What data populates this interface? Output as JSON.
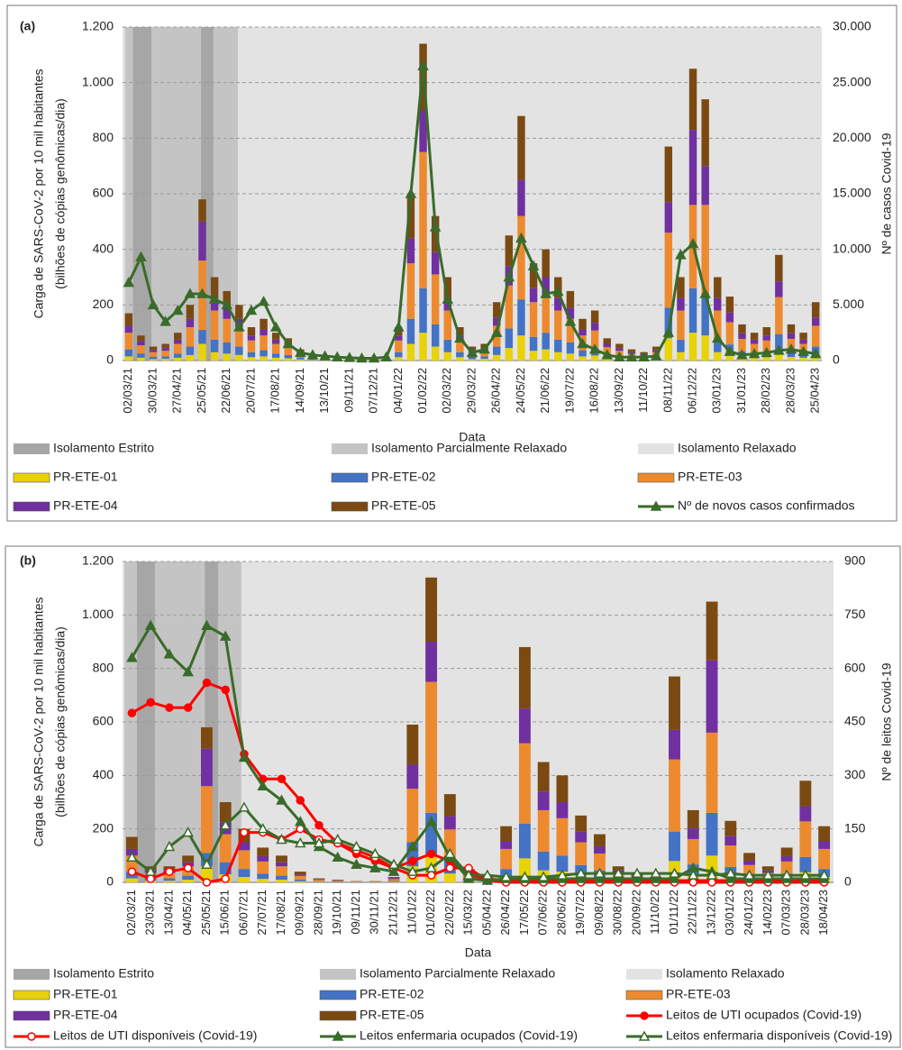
{
  "chart_data": [
    {
      "type": "bar_line",
      "panel_label": "(a)",
      "ylabel": [
        "Carga de SARS-CoV-2 por 10 mil habitantes",
        "(bilhões de cópias genômicas/dia)"
      ],
      "y2label": "Nº de casos Covid-19",
      "xlabel": "Data",
      "categories": [
        "02/03/21",
        null,
        "30/03/21",
        null,
        "27/04/21",
        null,
        "25/05/21",
        null,
        "22/06/21",
        null,
        "20/07/21",
        null,
        "17/08/21",
        null,
        "14/09/21",
        null,
        "13/10/21",
        null,
        "09/11/21",
        null,
        "07/12/21",
        null,
        "04/01/22",
        null,
        "01/02/22",
        null,
        "02/03/22",
        null,
        "29/03/22",
        null,
        "26/04/22",
        null,
        "24/05/22",
        null,
        "21/06/22",
        null,
        "19/07/22",
        null,
        "16/08/22",
        null,
        "13/09/22",
        null,
        "11/10/22",
        null,
        "08/11/22",
        null,
        "06/12/22",
        null,
        "03/01/23",
        null,
        "31/01/23",
        null,
        "28/02/23",
        null,
        "28/03/23",
        null,
        "25/04/23"
      ],
      "ylim": [
        0,
        1200
      ],
      "yticks": [
        0,
        200,
        400,
        600,
        800,
        {
          "value": 1000,
          "label": "1.000"
        },
        {
          "value": 1200,
          "label": "1.200"
        }
      ],
      "y2lim": [
        0,
        30000
      ],
      "y2ticks": [
        0,
        {
          "value": 5000,
          "label": "5.000"
        },
        {
          "value": 10000,
          "label": "10.000"
        },
        {
          "value": 15000,
          "label": "15.000"
        },
        {
          "value": 20000,
          "label": "20.000"
        },
        {
          "value": 25000,
          "label": "25.000"
        },
        {
          "value": 30000,
          "label": "30.000"
        }
      ],
      "grid": true,
      "periods": [
        {
          "name": "Isolamento Estrito",
          "color": "#a6a6a6",
          "spans": [
            [
              0.35,
              1.85
            ],
            [
              5.9,
              6.9
            ]
          ]
        },
        {
          "name": "Isolamento Parcialmente Relaxado",
          "color": "#c4c4c4",
          "spans": [
            [
              -0.3,
              8.9
            ]
          ]
        },
        {
          "name": "Isolamento Relaxado",
          "color": "#e3e3e3",
          "spans": [
            [
              -0.5,
              56.5
            ]
          ]
        }
      ],
      "series": [
        {
          "name": "PR-ETE-01",
          "kind": "bar",
          "color": "#e8d20a",
          "values": [
            15,
            10,
            5,
            6,
            10,
            20,
            60,
            30,
            25,
            20,
            12,
            15,
            10,
            8,
            4,
            2,
            2,
            1,
            1,
            1,
            1,
            1,
            12,
            60,
            100,
            50,
            30,
            12,
            5,
            6,
            20,
            45,
            90,
            35,
            40,
            30,
            25,
            15,
            18,
            8,
            6,
            4,
            3,
            5,
            80,
            30,
            100,
            90,
            30,
            23,
            13,
            10,
            12,
            38,
            13,
            10,
            20
          ]
        },
        {
          "name": "PR-ETE-02",
          "kind": "bar",
          "color": "#4472c4",
          "values": [
            25,
            15,
            8,
            9,
            15,
            30,
            50,
            45,
            40,
            30,
            18,
            22,
            15,
            12,
            6,
            3,
            2,
            2,
            2,
            1,
            1,
            1,
            18,
            90,
            160,
            80,
            45,
            18,
            8,
            9,
            30,
            70,
            130,
            50,
            60,
            45,
            40,
            22,
            27,
            12,
            9,
            6,
            5,
            8,
            110,
            45,
            160,
            140,
            45,
            35,
            20,
            15,
            18,
            57,
            20,
            15,
            30
          ]
        },
        {
          "name": "PR-ETE-03",
          "kind": "bar",
          "color": "#ed8a2f",
          "values": [
            60,
            30,
            17,
            20,
            35,
            70,
            250,
            105,
            85,
            70,
            42,
            53,
            35,
            28,
            14,
            7,
            5,
            3,
            3,
            2,
            2,
            2,
            42,
            200,
            490,
            180,
            105,
            42,
            17,
            20,
            75,
            155,
            300,
            125,
            140,
            105,
            85,
            53,
            63,
            28,
            20,
            14,
            10,
            17,
            270,
            105,
            300,
            330,
            105,
            80,
            45,
            35,
            42,
            133,
            45,
            35,
            75
          ]
        },
        {
          "name": "PR-ETE-04",
          "kind": "bar",
          "color": "#7030a0",
          "values": [
            25,
            15,
            8,
            10,
            15,
            30,
            140,
            45,
            40,
            30,
            18,
            22,
            15,
            12,
            6,
            3,
            2,
            2,
            2,
            0,
            0,
            0,
            18,
            90,
            150,
            80,
            45,
            18,
            8,
            10,
            30,
            70,
            130,
            50,
            60,
            45,
            40,
            22,
            27,
            12,
            10,
            6,
            5,
            8,
            110,
            45,
            270,
            140,
            45,
            35,
            20,
            15,
            18,
            57,
            20,
            15,
            30
          ]
        },
        {
          "name": "PR-ETE-05",
          "kind": "bar",
          "color": "#7b4a12",
          "values": [
            45,
            20,
            12,
            15,
            25,
            50,
            80,
            75,
            60,
            50,
            30,
            38,
            25,
            20,
            10,
            5,
            4,
            2,
            2,
            1,
            1,
            1,
            30,
            150,
            240,
            130,
            75,
            30,
            12,
            15,
            55,
            110,
            230,
            90,
            100,
            75,
            60,
            38,
            45,
            20,
            15,
            10,
            7,
            12,
            200,
            75,
            220,
            240,
            75,
            57,
            32,
            25,
            30,
            95,
            32,
            25,
            55
          ]
        },
        {
          "name": "Nº de novos casos confirmados",
          "kind": "line",
          "axis": "y2",
          "color": "#3a6b2a",
          "marker": "triangle",
          "filled": true,
          "values": [
            7000,
            9300,
            5000,
            3500,
            4500,
            6000,
            6000,
            5500,
            5000,
            3000,
            4500,
            5300,
            3000,
            1500,
            700,
            500,
            400,
            300,
            250,
            200,
            200,
            300,
            3000,
            15000,
            26500,
            12000,
            5500,
            2000,
            700,
            1000,
            2500,
            7500,
            11000,
            8500,
            6000,
            6200,
            3500,
            1500,
            1000,
            500,
            300,
            300,
            300,
            400,
            2500,
            9500,
            10500,
            6000,
            2000,
            800,
            500,
            600,
            700,
            900,
            1000,
            800,
            600
          ]
        }
      ]
    },
    {
      "type": "bar_line",
      "panel_label": "(b)",
      "ylabel": [
        "Carga de SARS-CoV-2 por 10 mil habitantes",
        "(bilhões de cópias genômicas/dia)"
      ],
      "y2label": "Nº de leitos Covid-19",
      "xlabel": "Data",
      "categories": [
        "02/03/21",
        "23/03/21",
        "13/04/21",
        "04/05/21",
        "25/05/21",
        "15/06/21",
        "06/07/21",
        "27/07/21",
        "17/08/21",
        "09/09/21",
        "28/09/21",
        "19/10/21",
        "09/11/21",
        "30/11/21",
        "21/12/21",
        "11/01/22",
        "01/02/22",
        "22/02/22",
        "15/03/22",
        "05/04/22",
        "26/04/22",
        "17/05/22",
        "07/06/22",
        "28/06/22",
        "19/07/22",
        "09/08/22",
        "30/08/22",
        "20/09/22",
        "11/10/22",
        "01/11/22",
        "22/11/22",
        "13/12/22",
        "03/01/23",
        "24/01/23",
        "14/02/23",
        "07/03/23",
        "28/03/23",
        "18/04/23"
      ],
      "ylim": [
        0,
        1200
      ],
      "yticks": [
        0,
        200,
        400,
        600,
        800,
        {
          "value": 1000,
          "label": "1.000"
        },
        {
          "value": 1200,
          "label": "1.200"
        }
      ],
      "y2lim": [
        0,
        900
      ],
      "y2ticks": [
        0,
        150,
        300,
        450,
        600,
        750,
        900
      ],
      "grid": true,
      "periods": [
        {
          "name": "Isolamento Estrito",
          "color": "#a6a6a6",
          "spans": [
            [
              0.27,
              1.23
            ],
            [
              3.9,
              4.6
            ]
          ]
        },
        {
          "name": "Isolamento Parcialmente Relaxado",
          "color": "#c4c4c4",
          "spans": [
            [
              -0.4,
              5.85
            ]
          ]
        },
        {
          "name": "Isolamento Relaxado",
          "color": "#e3e3e3",
          "spans": [
            [
              -0.5,
              37.5
            ]
          ]
        }
      ],
      "series": [
        {
          "name": "PR-ETE-01",
          "kind": "bar",
          "color": "#e8d20a",
          "values": [
            15,
            6,
            6,
            10,
            60,
            30,
            20,
            13,
            10,
            4,
            2,
            1,
            1,
            1,
            2,
            60,
            100,
            33,
            5,
            2,
            20,
            90,
            45,
            40,
            25,
            18,
            6,
            3,
            2,
            80,
            27,
            100,
            23,
            11,
            6,
            13,
            38,
            20
          ]
        },
        {
          "name": "PR-ETE-02",
          "kind": "bar",
          "color": "#4472c4",
          "values": [
            25,
            9,
            9,
            15,
            50,
            45,
            30,
            20,
            15,
            6,
            2,
            2,
            1,
            1,
            3,
            90,
            160,
            50,
            8,
            3,
            30,
            130,
            70,
            60,
            40,
            27,
            9,
            5,
            3,
            110,
            40,
            160,
            35,
            16,
            9,
            20,
            57,
            30
          ]
        },
        {
          "name": "PR-ETE-03",
          "kind": "bar",
          "color": "#ed8a2f",
          "values": [
            60,
            20,
            20,
            35,
            250,
            105,
            70,
            45,
            35,
            14,
            5,
            3,
            2,
            2,
            7,
            200,
            490,
            115,
            17,
            7,
            75,
            300,
            155,
            140,
            85,
            63,
            20,
            10,
            7,
            270,
            95,
            300,
            80,
            38,
            20,
            45,
            133,
            75
          ]
        },
        {
          "name": "PR-ETE-04",
          "kind": "bar",
          "color": "#7030a0",
          "values": [
            25,
            10,
            10,
            15,
            140,
            45,
            30,
            20,
            15,
            6,
            2,
            2,
            0,
            0,
            3,
            90,
            150,
            50,
            8,
            3,
            30,
            130,
            70,
            60,
            40,
            27,
            10,
            5,
            3,
            110,
            40,
            270,
            35,
            16,
            10,
            20,
            57,
            30
          ]
        },
        {
          "name": "PR-ETE-05",
          "kind": "bar",
          "color": "#7b4a12",
          "values": [
            45,
            15,
            15,
            25,
            80,
            75,
            50,
            32,
            25,
            10,
            4,
            2,
            1,
            1,
            5,
            150,
            240,
            82,
            12,
            5,
            55,
            230,
            110,
            100,
            60,
            45,
            15,
            7,
            5,
            200,
            68,
            220,
            57,
            29,
            15,
            32,
            95,
            55
          ]
        },
        {
          "name": "Leitos de UTI ocupados (Covid-19)",
          "kind": "line",
          "axis": "y2",
          "color": "#ff0000",
          "marker": "circle",
          "filled": true,
          "values": [
            475,
            505,
            490,
            490,
            560,
            540,
            360,
            290,
            290,
            230,
            160,
            110,
            80,
            60,
            40,
            60,
            80,
            60,
            20,
            10,
            5,
            5,
            5,
            5,
            5,
            5,
            5,
            5,
            5,
            5,
            5,
            5,
            5,
            5,
            5,
            5,
            5,
            5
          ]
        },
        {
          "name": "Leitos de UTI disponíveis (Covid-19)",
          "kind": "line",
          "axis": "y2",
          "color": "#ff0000",
          "marker": "circle",
          "filled": false,
          "values": [
            30,
            10,
            30,
            40,
            0,
            10,
            140,
            140,
            120,
            150,
            120,
            110,
            90,
            70,
            40,
            20,
            20,
            40,
            40,
            5,
            0,
            0,
            0,
            0,
            0,
            0,
            0,
            0,
            0,
            0,
            0,
            0,
            0,
            0,
            0,
            0,
            0,
            0
          ]
        },
        {
          "name": "Leitos enfermaria ocupados (Covid-19)",
          "kind": "line",
          "axis": "y2",
          "color": "#3a6b2a",
          "marker": "triangle",
          "filled": true,
          "values": [
            630,
            720,
            640,
            590,
            720,
            690,
            350,
            270,
            230,
            170,
            100,
            70,
            50,
            40,
            30,
            100,
            170,
            70,
            10,
            5,
            10,
            10,
            10,
            10,
            10,
            10,
            10,
            10,
            10,
            10,
            40,
            30,
            10,
            10,
            10,
            10,
            10,
            10
          ]
        },
        {
          "name": "Leitos enfermaria disponíveis (Covid-19)",
          "kind": "line",
          "axis": "y2",
          "color": "#3a6b2a",
          "marker": "triangle",
          "filled": false,
          "values": [
            70,
            30,
            100,
            140,
            50,
            160,
            210,
            150,
            120,
            110,
            110,
            120,
            100,
            80,
            50,
            30,
            40,
            80,
            20,
            20,
            15,
            15,
            15,
            20,
            25,
            25,
            25,
            25,
            25,
            25,
            20,
            20,
            25,
            20,
            20,
            20,
            20,
            20
          ]
        }
      ]
    }
  ]
}
